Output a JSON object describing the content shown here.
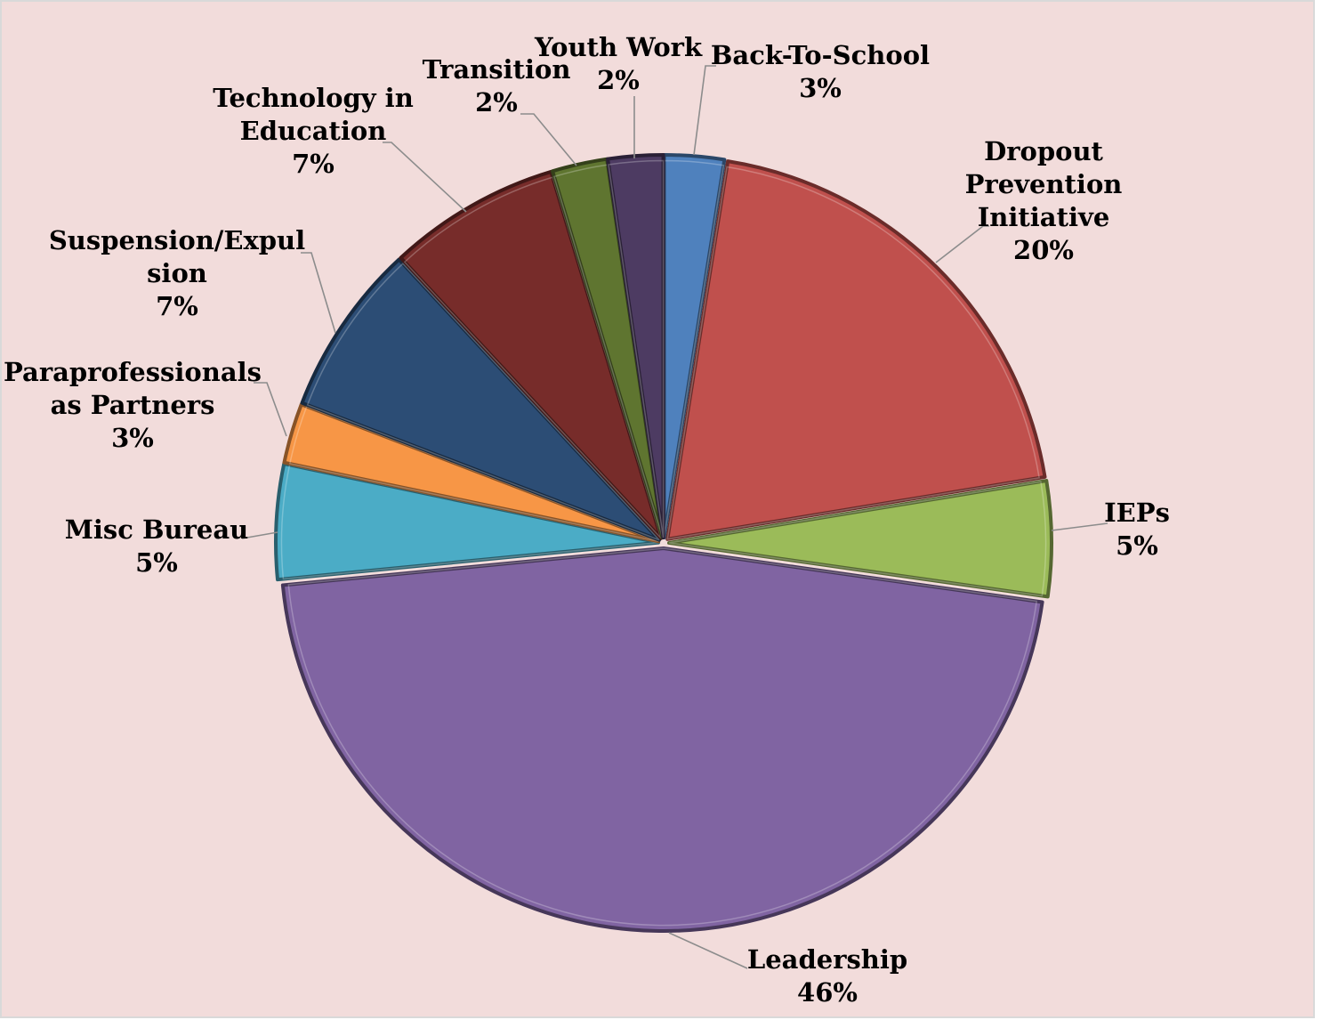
{
  "background_color": "#f2dcdb",
  "border_color": "#d9d9d9",
  "chart_data": {
    "type": "pie",
    "legend": "none",
    "data_labels": "outside-with-leader-lines",
    "unit": "%",
    "slices": [
      {
        "name": "Back-To-School",
        "label_lines": [
          "Back-To-School"
        ],
        "percent_label": "3%",
        "value": 2.5,
        "color": "#4f81bd"
      },
      {
        "name": "Dropout Prevention Initiative",
        "label_lines": [
          "Dropout",
          "Prevention",
          "Initiative"
        ],
        "percent_label": "20%",
        "value": 19.7,
        "color": "#c0504d"
      },
      {
        "name": "IEPs",
        "label_lines": [
          "IEPs"
        ],
        "percent_label": "5%",
        "value": 4.8,
        "color": "#9bbb59"
      },
      {
        "name": "Leadership",
        "label_lines": [
          "Leadership"
        ],
        "percent_label": "46%",
        "value": 45.8,
        "color": "#8064a2"
      },
      {
        "name": "Misc Bureau",
        "label_lines": [
          "Misc Bureau"
        ],
        "percent_label": "5%",
        "value": 4.8,
        "color": "#4bacc6"
      },
      {
        "name": "Paraprofessionals as Partners",
        "label_lines": [
          "Paraprofessionals",
          "as Partners"
        ],
        "percent_label": "3%",
        "value": 2.5,
        "color": "#f79646"
      },
      {
        "name": "Suspension/Expulsion",
        "label_lines": [
          "Suspension/Expul",
          "sion"
        ],
        "percent_label": "7%",
        "value": 7.2,
        "color": "#2c4d75"
      },
      {
        "name": "Technology in Education",
        "label_lines": [
          "Technology in",
          "Education"
        ],
        "percent_label": "7%",
        "value": 7.2,
        "color": "#772c2a"
      },
      {
        "name": "Transition",
        "label_lines": [
          "Transition"
        ],
        "percent_label": "2%",
        "value": 2.3,
        "color": "#5f7530"
      },
      {
        "name": "Youth Work",
        "label_lines": [
          "Youth Work"
        ],
        "percent_label": "2%",
        "value": 2.3,
        "color": "#4d3b62"
      }
    ]
  }
}
